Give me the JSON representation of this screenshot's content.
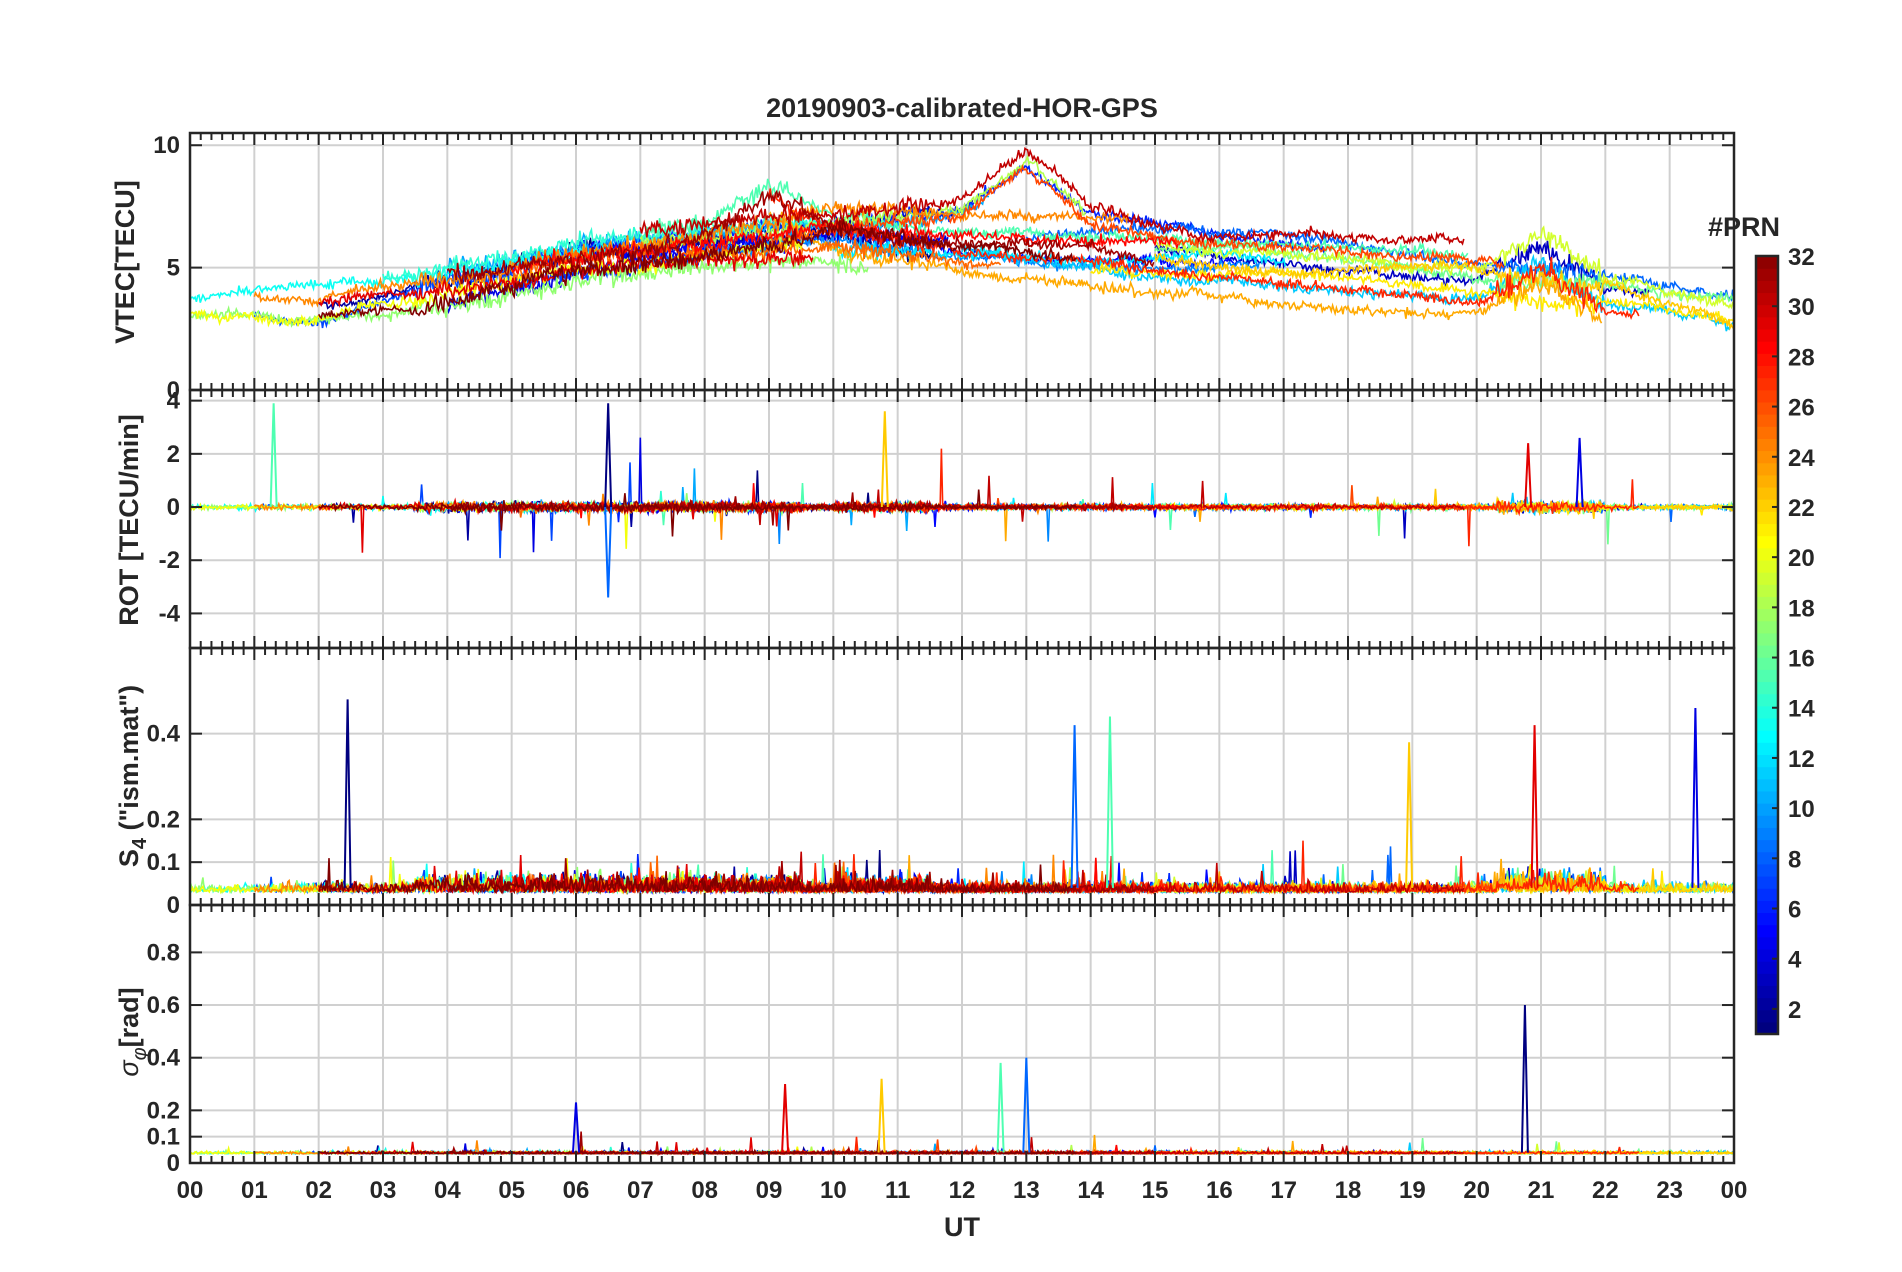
{
  "chart_data": [
    {
      "type": "line",
      "title": "20190903-calibrated-HOR-GPS",
      "ylabel": "VTEC[TECU]",
      "ylim": [
        0,
        10.5
      ],
      "yticks": [
        0,
        5,
        10
      ],
      "ytick_labels": [
        "0",
        "5",
        "10"
      ],
      "series_summary": [
        {
          "prn": 3,
          "x": [
            0,
            2,
            4,
            6,
            8,
            9,
            10,
            12,
            14,
            16,
            18,
            20,
            22,
            24
          ],
          "y": [
            3.0,
            2.8,
            3.6,
            4.8,
            5.3,
            5.6,
            6.1,
            5.6,
            5.5,
            5.4,
            4.8,
            4.2,
            3.7,
            3.1
          ]
        },
        {
          "prn": 11,
          "x": [
            0,
            2,
            4,
            6,
            8,
            10,
            12,
            14,
            16,
            18,
            20,
            22,
            24
          ],
          "y": [
            3.6,
            3.7,
            4.2,
            5.3,
            5.6,
            5.9,
            5.2,
            5.0,
            4.8,
            4.5,
            4.1,
            3.8,
            3.0
          ]
        },
        {
          "prn": 19,
          "x": [
            0,
            2,
            4,
            6,
            8,
            10,
            12,
            13,
            14,
            16,
            18,
            20,
            22,
            24
          ],
          "y": [
            3.2,
            3.6,
            4.5,
            5.5,
            6.0,
            6.3,
            7.0,
            8.8,
            6.6,
            5.6,
            5.2,
            5.1,
            4.4,
            3.0
          ]
        },
        {
          "prn": 27,
          "x": [
            0,
            2,
            4,
            6,
            8,
            9,
            10,
            12,
            14,
            16,
            18,
            20,
            21,
            22,
            24
          ],
          "y": [
            3.1,
            3.0,
            4.8,
            5.3,
            6.2,
            7.8,
            6.6,
            5.8,
            5.4,
            5.0,
            4.6,
            4.2,
            5.6,
            3.9,
            2.9
          ]
        }
      ]
    },
    {
      "type": "line",
      "title": "",
      "ylabel": "ROT [TECU/min]",
      "ylim": [
        -5.3,
        4.4
      ],
      "yticks": [
        -4,
        -2,
        0,
        2,
        4
      ],
      "ytick_labels": [
        "-4",
        "-2",
        "0",
        "2",
        "4"
      ],
      "peaks": [
        {
          "x": 6.5,
          "y": 3.9
        },
        {
          "x": 6.5,
          "y": -3.4
        },
        {
          "x": 1.3,
          "y": 3.9
        },
        {
          "x": 10.8,
          "y": 3.6
        },
        {
          "x": 20.8,
          "y": 2.4
        },
        {
          "x": 21.6,
          "y": 2.6
        }
      ]
    },
    {
      "type": "line",
      "title": "",
      "ylabel": "S4 (\"ism.mat\")",
      "ylim": [
        0,
        0.6
      ],
      "yticks": [
        0,
        0.1,
        0.2,
        0.4
      ],
      "ytick_labels": [
        "0",
        "0.1",
        "0.2",
        "0.4"
      ],
      "peaks": [
        {
          "x": 2.45,
          "y": 0.48
        },
        {
          "x": 13.75,
          "y": 0.42
        },
        {
          "x": 14.3,
          "y": 0.44
        },
        {
          "x": 18.95,
          "y": 0.38
        },
        {
          "x": 20.9,
          "y": 0.42
        },
        {
          "x": 23.4,
          "y": 0.46
        }
      ]
    },
    {
      "type": "line",
      "title": "",
      "ylabel": "σφ[rad]",
      "ylim": [
        0,
        0.98
      ],
      "yticks": [
        0,
        0.1,
        0.2,
        0.4,
        0.6,
        0.8
      ],
      "ytick_labels": [
        "0",
        "0.1",
        "0.2",
        "0.4",
        "0.6",
        "0.8"
      ],
      "xlabel": "UT",
      "xlim": [
        0,
        24
      ],
      "xticks": [
        0,
        1,
        2,
        3,
        4,
        5,
        6,
        7,
        8,
        9,
        10,
        11,
        12,
        13,
        14,
        15,
        16,
        17,
        18,
        19,
        20,
        21,
        22,
        23,
        24
      ],
      "xtick_labels": [
        "00",
        "01",
        "02",
        "03",
        "04",
        "05",
        "06",
        "07",
        "08",
        "09",
        "10",
        "11",
        "12",
        "13",
        "14",
        "15",
        "16",
        "17",
        "18",
        "19",
        "20",
        "21",
        "22",
        "23",
        "00"
      ],
      "peaks": [
        {
          "x": 20.75,
          "y": 0.6
        },
        {
          "x": 13.0,
          "y": 0.4
        },
        {
          "x": 12.6,
          "y": 0.38
        },
        {
          "x": 10.75,
          "y": 0.32
        },
        {
          "x": 9.25,
          "y": 0.3
        },
        {
          "x": 6.0,
          "y": 0.23
        }
      ]
    }
  ],
  "colorbar": {
    "label": "#PRN",
    "range": [
      1,
      32
    ],
    "ticks": [
      2,
      4,
      6,
      8,
      10,
      12,
      14,
      16,
      18,
      20,
      22,
      24,
      26,
      28,
      30,
      32
    ],
    "tick_labels": [
      "2",
      "4",
      "6",
      "8",
      "10",
      "12",
      "14",
      "16",
      "18",
      "20",
      "22",
      "24",
      "26",
      "28",
      "30",
      "32"
    ]
  }
}
